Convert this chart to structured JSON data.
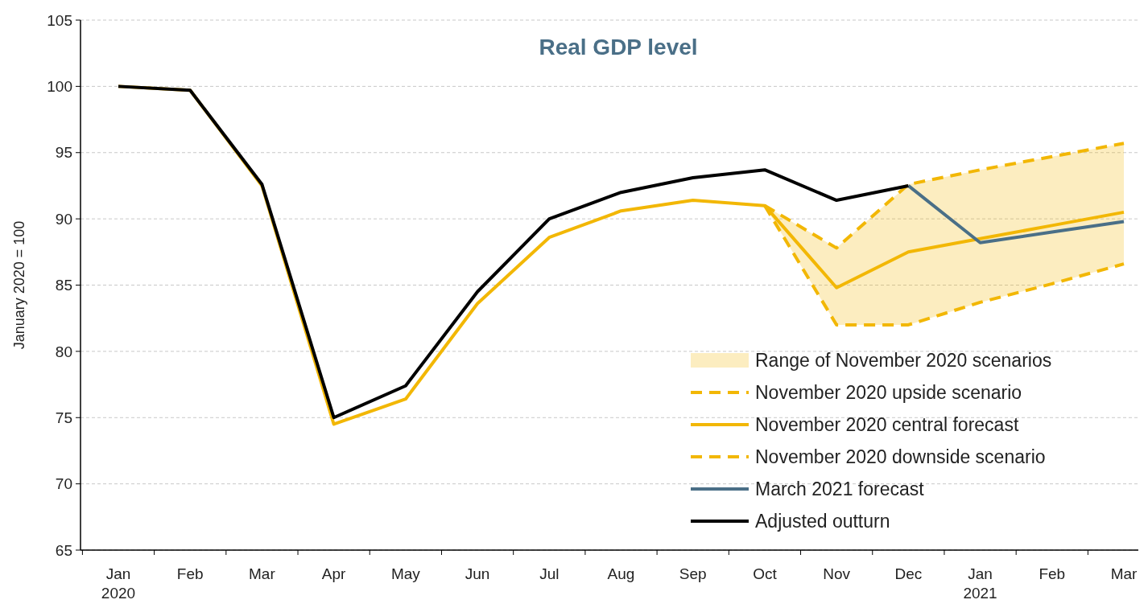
{
  "chart_data": {
    "type": "line",
    "title": "Real GDP level",
    "ylabel": "January 2020 = 100",
    "categories": [
      "Jan\n2020",
      "Feb",
      "Mar",
      "Apr",
      "May",
      "Jun",
      "Jul",
      "Aug",
      "Sep",
      "Oct",
      "Nov",
      "Dec",
      "Jan\n2021",
      "Feb",
      "Mar"
    ],
    "ylim": [
      65,
      105
    ],
    "yticks": [
      65,
      70,
      75,
      80,
      85,
      90,
      95,
      100,
      105
    ],
    "grid": "y",
    "legend": "bottom right",
    "marker": "none",
    "annotations": [
      "Range of November 2020 scenarios"
    ],
    "series": [
      {
        "name": "November 2020 upside scenario",
        "color": "#f2b705",
        "line_style": "dashed",
        "values": [
          null,
          null,
          null,
          null,
          null,
          null,
          null,
          null,
          null,
          91.0,
          87.8,
          92.6,
          93.7,
          94.7,
          95.7
        ]
      },
      {
        "name": "November 2020 central forecast",
        "color": "#f2b705",
        "line_style": "solid",
        "values": [
          100,
          99.7,
          92.5,
          74.5,
          76.4,
          83.6,
          88.6,
          90.6,
          91.4,
          91.0,
          84.8,
          87.5,
          88.5,
          89.5,
          90.5
        ],
        "lower": [
          null,
          null,
          null,
          null,
          null,
          null,
          null,
          null,
          null,
          91.0,
          82.0,
          82.0,
          83.7,
          85.1,
          86.6
        ],
        "upper": [
          null,
          null,
          null,
          null,
          null,
          null,
          null,
          null,
          null,
          91.0,
          87.8,
          92.6,
          93.7,
          94.7,
          95.7
        ]
      },
      {
        "name": "November 2020 downside scenario",
        "color": "#f2b705",
        "line_style": "dashed",
        "values": [
          null,
          null,
          null,
          null,
          null,
          null,
          null,
          null,
          null,
          91.0,
          82.0,
          82.0,
          83.7,
          85.1,
          86.6
        ]
      },
      {
        "name": "March 2021 forecast",
        "color": "#4a6f87",
        "line_style": "solid",
        "values": [
          null,
          null,
          null,
          null,
          null,
          null,
          null,
          null,
          null,
          null,
          null,
          92.5,
          88.2,
          89.0,
          89.8
        ]
      },
      {
        "name": "Adjusted outturn",
        "color": "#000000",
        "line_style": "solid",
        "values": [
          100,
          99.7,
          92.6,
          75.0,
          77.4,
          84.5,
          90.0,
          92.0,
          93.1,
          93.7,
          91.4,
          92.5,
          null,
          null,
          null
        ]
      }
    ]
  }
}
